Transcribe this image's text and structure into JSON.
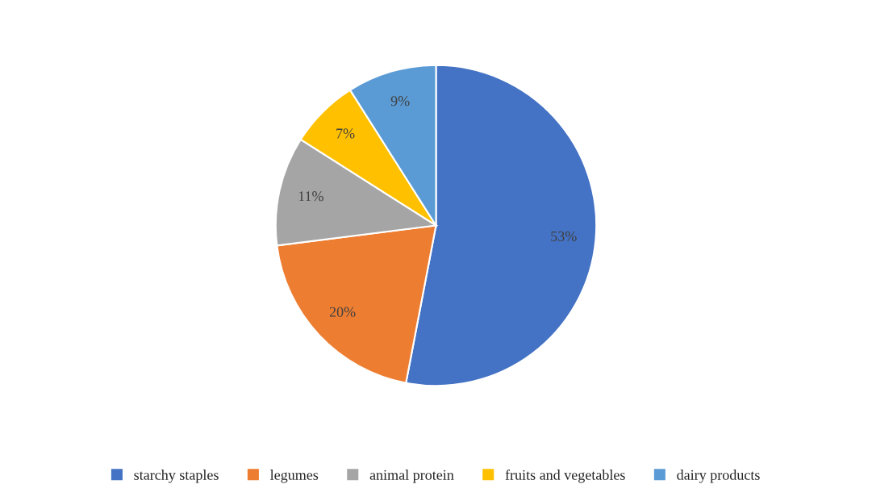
{
  "chart_data": {
    "type": "pie",
    "categories": [
      "starchy staples",
      "legumes",
      "animal protein",
      "fruits and vegetables",
      "dairy products"
    ],
    "values": [
      53,
      20,
      11,
      7,
      9
    ],
    "colors": [
      "#4472c4",
      "#ed7d31",
      "#a5a5a5",
      "#ffc000",
      "#5b9bd5"
    ],
    "value_labels": [
      "53%",
      "20%",
      "11%",
      "7%",
      "9%"
    ],
    "legend": "bottom"
  }
}
